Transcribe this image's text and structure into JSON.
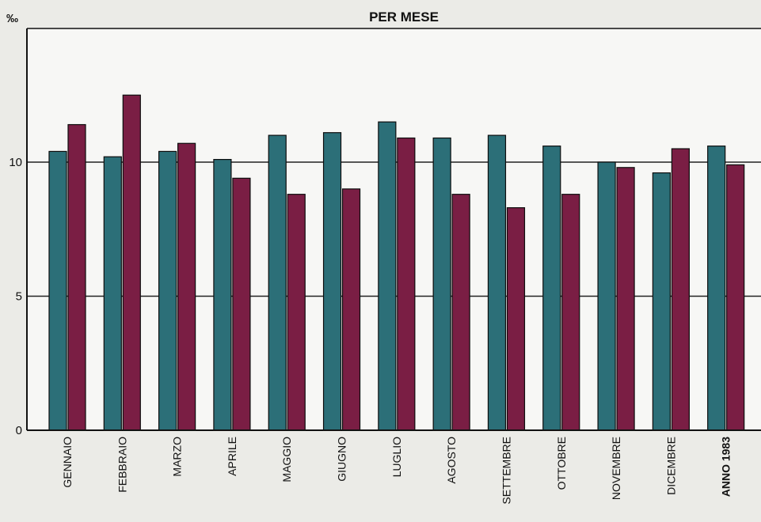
{
  "chart_data": {
    "type": "bar",
    "title": "PER MESE",
    "ylabel": "‰",
    "ylim": [
      0,
      15
    ],
    "yticks": [
      "0",
      "5",
      "10"
    ],
    "grid": "horizontal",
    "categories": [
      "GENNAIO",
      "FEBBRAIO",
      "MARZO",
      "APRILE",
      "MAGGIO",
      "GIUGNO",
      "LUGLIO",
      "AGOSTO",
      "SETTEMBRE",
      "OTTOBRE",
      "NOVEMBRE",
      "DICEMBRE",
      "ANNO 1983"
    ],
    "series": [
      {
        "color": "#2c6f78",
        "values": [
          10.4,
          10.2,
          10.4,
          10.1,
          11.0,
          11.1,
          11.5,
          10.9,
          11.0,
          10.6,
          10.0,
          9.6,
          10.6
        ]
      },
      {
        "color": "#7a1e44",
        "values": [
          11.4,
          12.5,
          10.7,
          9.4,
          8.8,
          9.0,
          10.9,
          8.8,
          8.3,
          8.8,
          9.8,
          10.5,
          9.9
        ]
      }
    ]
  }
}
